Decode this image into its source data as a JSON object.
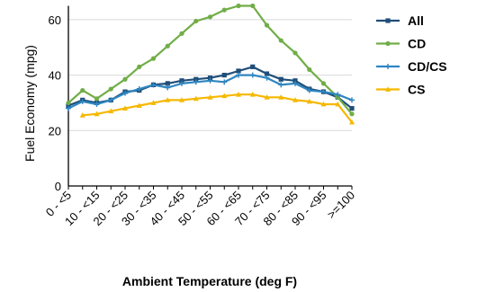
{
  "chart_data": {
    "type": "line",
    "title": "",
    "xlabel": "Ambient Temperature (deg F)",
    "ylabel": "Fuel Economy (mpg)",
    "ylim": [
      0,
      65
    ],
    "yticks": [
      "0",
      "20",
      "40",
      "60"
    ],
    "grid": "horizontal",
    "legend": "right",
    "category_labels": [
      "0 - <5",
      "10 - <15",
      "20 - <25",
      "30 - <35",
      "40 - <45",
      "50 - <55",
      "60 - <65",
      "70 - <75",
      "80 - <85",
      "90 - <95",
      ">=100"
    ],
    "x": [
      0,
      5,
      10,
      15,
      20,
      25,
      30,
      35,
      40,
      45,
      50,
      55,
      60,
      65,
      70,
      75,
      80,
      85,
      90,
      95,
      100
    ],
    "series": [
      {
        "name": "All",
        "color": "#1f4e79",
        "marker": "square",
        "values": [
          29,
          31,
          30,
          31,
          34,
          34.5,
          36.5,
          37,
          38,
          38.5,
          39,
          40,
          41.5,
          43,
          40.5,
          38.5,
          38,
          35,
          34,
          32,
          28
        ]
      },
      {
        "name": "CD",
        "color": "#70ad47",
        "marker": "dot",
        "values": [
          30,
          34.5,
          31.5,
          35,
          38.5,
          43,
          46,
          50.5,
          55,
          59.5,
          61,
          63.5,
          65,
          65,
          58,
          52.5,
          48,
          42,
          37,
          32,
          26
        ]
      },
      {
        "name": "CD/CS",
        "color": "#2e86c1",
        "marker": "plus",
        "values": [
          28,
          30.5,
          29.5,
          31,
          33.5,
          35,
          36.5,
          35.5,
          37,
          37.5,
          38,
          37.5,
          40,
          40,
          39,
          36.5,
          37,
          34.5,
          34,
          33,
          31
        ]
      },
      {
        "name": "CS",
        "color": "#f5b800",
        "marker": "triangle",
        "values": [
          null,
          25.5,
          26,
          27,
          28,
          29,
          30,
          31,
          31,
          31.5,
          32,
          32.5,
          33,
          33,
          32,
          32,
          31,
          30.5,
          29.5,
          29.5,
          23
        ]
      }
    ]
  }
}
